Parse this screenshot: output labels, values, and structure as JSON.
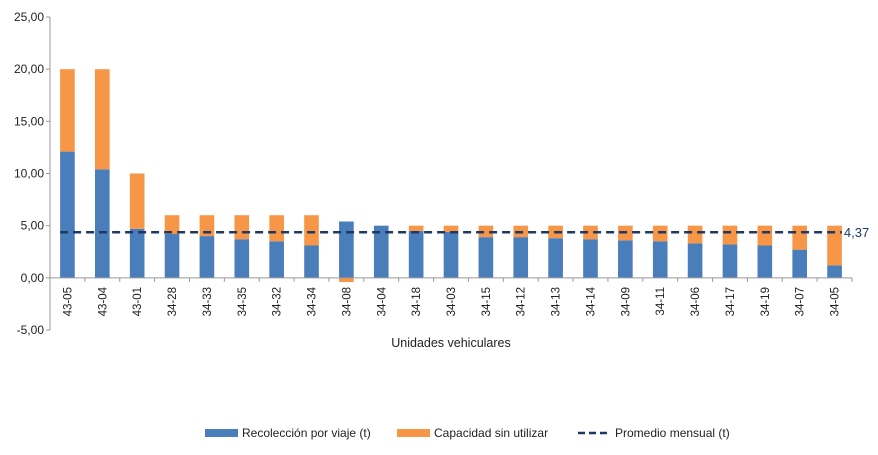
{
  "chart_data": {
    "type": "bar",
    "stacked": true,
    "title": "",
    "xlabel": "Unidades vehiculares",
    "ylabel": "",
    "ylim": [
      -5,
      25
    ],
    "yticks": [
      -5,
      0,
      5,
      10,
      15,
      20,
      25
    ],
    "ytick_labels": [
      "-5,00",
      "0,00",
      "5,00",
      "10,00",
      "15,00",
      "20,00",
      "25,00"
    ],
    "grid": false,
    "legend_position": "bottom",
    "categories": [
      "43-05",
      "43-04",
      "43-01",
      "34-28",
      "34-33",
      "34-35",
      "34-32",
      "34-34",
      "34-08",
      "34-04",
      "34-18",
      "34-03",
      "34-15",
      "34-12",
      "34-13",
      "34-14",
      "34-09",
      "34-11",
      "34-06",
      "34-17",
      "34-19",
      "34-07",
      "34-05"
    ],
    "series": [
      {
        "name": "Recolección por viaje (t)",
        "color": "#4a7ebb",
        "values": [
          12.1,
          10.4,
          4.7,
          4.2,
          4.0,
          3.7,
          3.5,
          3.1,
          5.4,
          5.0,
          4.5,
          4.4,
          3.9,
          3.9,
          3.8,
          3.7,
          3.6,
          3.5,
          3.3,
          3.2,
          3.1,
          2.7,
          1.2
        ]
      },
      {
        "name": "Capacidad sin utilizar",
        "color": "#f79646",
        "values": [
          7.9,
          9.6,
          5.3,
          1.8,
          2.0,
          2.3,
          2.5,
          2.9,
          -0.4,
          0.0,
          0.5,
          0.6,
          1.1,
          1.1,
          1.2,
          1.3,
          1.4,
          1.5,
          1.7,
          1.8,
          1.9,
          2.3,
          3.8
        ]
      }
    ],
    "average": {
      "name": "Promedio mensual (t)",
      "value": 4.37,
      "label": "4,37",
      "color": "#1f3864"
    }
  }
}
